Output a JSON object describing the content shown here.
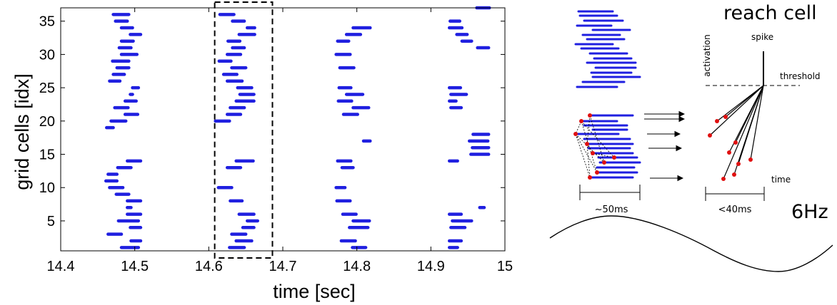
{
  "chart_data": [
    {
      "type": "scatter",
      "variant": "raster",
      "xlabel": "time [sec]",
      "ylabel": "grid cells [idx]",
      "xlim": [
        14.4,
        15.0
      ],
      "ylim": [
        0.5,
        37
      ],
      "xticks": [
        "14.4",
        "14.5",
        "14.6",
        "14.7",
        "14.8",
        "14.9",
        "15"
      ],
      "xtick_values": [
        14.4,
        14.5,
        14.6,
        14.7,
        14.8,
        14.9,
        15.0
      ],
      "yticks": [
        "5",
        "10",
        "15",
        "20",
        "25",
        "30",
        "35"
      ],
      "ytick_values": [
        5,
        10,
        15,
        20,
        25,
        30,
        35
      ],
      "grid": false,
      "color": "#1f1fe0",
      "box_color": "#000000",
      "highlight_window": [
        14.608,
        14.686
      ],
      "segments": [
        [
          1,
          14.482,
          14.505
        ],
        [
          2,
          14.495,
          14.508
        ],
        [
          3,
          14.464,
          14.482
        ],
        [
          4,
          14.494,
          14.508
        ],
        [
          5,
          14.478,
          14.505
        ],
        [
          6,
          14.49,
          14.508
        ],
        [
          7,
          14.49,
          14.495
        ],
        [
          8,
          14.49,
          14.508
        ],
        [
          9,
          14.475,
          14.492
        ],
        [
          10,
          14.466,
          14.484
        ],
        [
          11,
          14.461,
          14.476
        ],
        [
          12,
          14.464,
          14.476
        ],
        [
          13,
          14.477,
          14.495
        ],
        [
          14,
          14.49,
          14.508
        ],
        [
          19,
          14.462,
          14.471
        ],
        [
          20,
          14.468,
          14.488
        ],
        [
          21,
          14.487,
          14.504
        ],
        [
          22,
          14.473,
          14.491
        ],
        [
          23,
          14.487,
          14.502
        ],
        [
          24,
          14.494,
          14.497
        ],
        [
          25,
          14.497,
          14.505
        ],
        [
          26,
          14.466,
          14.48
        ],
        [
          27,
          14.471,
          14.486
        ],
        [
          28,
          14.476,
          14.492
        ],
        [
          29,
          14.47,
          14.492
        ],
        [
          30,
          14.482,
          14.503
        ],
        [
          31,
          14.479,
          14.495
        ],
        [
          32,
          14.482,
          14.498
        ],
        [
          33,
          14.494,
          14.508
        ],
        [
          34,
          14.482,
          14.497
        ],
        [
          35,
          14.474,
          14.49
        ],
        [
          36,
          14.471,
          14.492
        ],
        [
          1,
          14.628,
          14.648
        ],
        [
          2,
          14.637,
          14.658
        ],
        [
          3,
          14.631,
          14.65
        ],
        [
          4,
          14.646,
          14.661
        ],
        [
          5,
          14.652,
          14.666
        ],
        [
          6,
          14.641,
          14.661
        ],
        [
          8,
          14.629,
          14.645
        ],
        [
          10,
          14.613,
          14.631
        ],
        [
          13,
          14.625,
          14.643
        ],
        [
          14,
          14.637,
          14.66
        ],
        [
          20,
          14.609,
          14.628
        ],
        [
          21,
          14.625,
          14.643
        ],
        [
          22,
          14.629,
          14.648
        ],
        [
          23,
          14.637,
          14.661
        ],
        [
          24,
          14.642,
          14.661
        ],
        [
          25,
          14.639,
          14.658
        ],
        [
          26,
          14.625,
          14.645
        ],
        [
          27,
          14.62,
          14.638
        ],
        [
          28,
          14.631,
          14.65
        ],
        [
          29,
          14.614,
          14.63
        ],
        [
          30,
          14.625,
          14.643
        ],
        [
          31,
          14.632,
          14.648
        ],
        [
          32,
          14.626,
          14.642
        ],
        [
          33,
          14.641,
          14.662
        ],
        [
          34,
          14.652,
          14.662
        ],
        [
          35,
          14.632,
          14.648
        ],
        [
          36,
          14.615,
          14.634
        ],
        [
          1,
          14.794,
          14.812
        ],
        [
          2,
          14.779,
          14.798
        ],
        [
          4,
          14.79,
          14.815
        ],
        [
          5,
          14.795,
          14.817
        ],
        [
          6,
          14.781,
          14.799
        ],
        [
          8,
          14.773,
          14.791
        ],
        [
          10,
          14.772,
          14.784
        ],
        [
          13,
          14.78,
          14.795
        ],
        [
          14,
          14.774,
          14.792
        ],
        [
          17,
          14.809,
          14.818
        ],
        [
          21,
          14.782,
          14.801
        ],
        [
          22,
          14.795,
          14.816
        ],
        [
          23,
          14.775,
          14.793
        ],
        [
          24,
          14.786,
          14.808
        ],
        [
          25,
          14.776,
          14.792
        ],
        [
          28,
          14.777,
          14.796
        ],
        [
          30,
          14.772,
          14.791
        ],
        [
          32,
          14.774,
          14.789
        ],
        [
          33,
          14.786,
          14.805
        ],
        [
          34,
          14.795,
          14.818
        ],
        [
          1,
          14.925,
          14.936
        ],
        [
          2,
          14.925,
          14.941
        ],
        [
          4,
          14.927,
          14.946
        ],
        [
          5,
          14.929,
          14.955
        ],
        [
          6,
          14.925,
          14.941
        ],
        [
          7,
          14.966,
          14.972
        ],
        [
          14,
          14.925,
          14.936
        ],
        [
          15,
          14.954,
          14.978
        ],
        [
          16,
          14.956,
          14.978
        ],
        [
          17,
          14.952,
          14.977
        ],
        [
          18,
          14.957,
          14.978
        ],
        [
          22,
          14.927,
          14.941
        ],
        [
          23,
          14.925,
          14.934
        ],
        [
          24,
          14.927,
          14.948
        ],
        [
          25,
          14.925,
          14.94
        ],
        [
          31,
          14.963,
          14.978
        ],
        [
          32,
          14.942,
          14.955
        ],
        [
          33,
          14.935,
          14.949
        ],
        [
          34,
          14.925,
          14.942
        ],
        [
          35,
          14.926,
          14.939
        ],
        [
          37,
          14.962,
          14.979
        ]
      ]
    },
    {
      "type": "diagram",
      "title": "reach cell",
      "axis_vertical": "activation",
      "axis_horizontal": "time",
      "spike_label": "spike",
      "threshold_label": "threshold",
      "left_scale_label": "~50ms",
      "right_scale_label": "<40ms",
      "frequency_label": "6Hz",
      "spike_color": "#1f1fe0",
      "dot_color": "#e01010"
    }
  ]
}
